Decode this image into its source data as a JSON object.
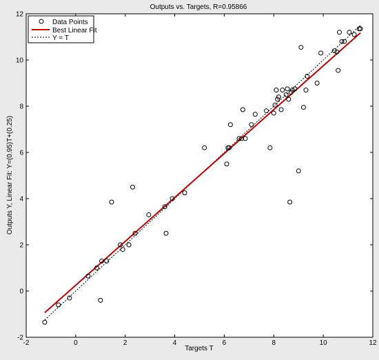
{
  "chart_data": {
    "type": "scatter",
    "title": "Outputs vs. Targets, R=0.95866",
    "xlabel": "Targets T",
    "ylabel": "Outputs Y,  Linear Fit: Y=(0.95)T+(0.25)",
    "xlim": [
      -2,
      12
    ],
    "ylim": [
      -2,
      12
    ],
    "xticks": [
      -2,
      0,
      2,
      4,
      6,
      8,
      10,
      12
    ],
    "yticks": [
      -2,
      0,
      2,
      4,
      6,
      8,
      10,
      12
    ],
    "grid": false,
    "legend_position": "top-left",
    "colors": {
      "fit_line": "#c00000",
      "identity_line": "#000000",
      "points": "#000000",
      "plot_bg": "#ffffff",
      "figure_bg": "#eaeaea"
    },
    "series": [
      {
        "name": "Data Points",
        "kind": "scatter",
        "points": [
          [
            -1.25,
            -1.35
          ],
          [
            -0.7,
            -0.6
          ],
          [
            -0.25,
            -0.3
          ],
          [
            0.5,
            0.65
          ],
          [
            0.85,
            1.0
          ],
          [
            1.0,
            -0.4
          ],
          [
            1.05,
            1.3
          ],
          [
            1.25,
            1.3
          ],
          [
            1.45,
            3.85
          ],
          [
            1.8,
            2.0
          ],
          [
            1.9,
            1.8
          ],
          [
            2.15,
            2.0
          ],
          [
            2.3,
            4.5
          ],
          [
            2.4,
            2.5
          ],
          [
            2.95,
            3.3
          ],
          [
            3.6,
            3.65
          ],
          [
            3.65,
            2.5
          ],
          [
            3.9,
            4.0
          ],
          [
            4.4,
            4.25
          ],
          [
            5.2,
            6.2
          ],
          [
            6.1,
            5.5
          ],
          [
            6.15,
            6.2
          ],
          [
            6.2,
            6.2
          ],
          [
            6.25,
            7.2
          ],
          [
            6.6,
            6.6
          ],
          [
            6.7,
            6.6
          ],
          [
            6.75,
            7.85
          ],
          [
            6.85,
            6.6
          ],
          [
            7.1,
            7.2
          ],
          [
            7.25,
            7.65
          ],
          [
            7.7,
            7.8
          ],
          [
            7.85,
            6.2
          ],
          [
            8.0,
            7.7
          ],
          [
            8.05,
            8.05
          ],
          [
            8.1,
            8.7
          ],
          [
            8.15,
            8.3
          ],
          [
            8.2,
            8.4
          ],
          [
            8.3,
            7.85
          ],
          [
            8.35,
            8.7
          ],
          [
            8.5,
            8.5
          ],
          [
            8.55,
            8.75
          ],
          [
            8.6,
            8.3
          ],
          [
            8.65,
            3.85
          ],
          [
            8.7,
            8.6
          ],
          [
            8.75,
            8.7
          ],
          [
            8.85,
            8.75
          ],
          [
            9.0,
            5.2
          ],
          [
            9.1,
            10.55
          ],
          [
            9.2,
            7.95
          ],
          [
            9.3,
            8.7
          ],
          [
            9.35,
            9.3
          ],
          [
            9.75,
            9.0
          ],
          [
            9.9,
            10.3
          ],
          [
            10.45,
            10.4
          ],
          [
            10.55,
            10.35
          ],
          [
            10.6,
            9.55
          ],
          [
            10.65,
            11.2
          ],
          [
            10.75,
            10.8
          ],
          [
            10.85,
            10.8
          ],
          [
            11.05,
            11.2
          ],
          [
            11.25,
            11.1
          ],
          [
            11.45,
            11.35
          ],
          [
            11.5,
            11.35
          ]
        ]
      },
      {
        "name": "Best Linear Fit",
        "kind": "line",
        "style": "solid",
        "points": [
          [
            -1.25,
            -0.9375
          ],
          [
            11.5,
            11.175
          ]
        ]
      },
      {
        "name": "Y = T",
        "kind": "line",
        "style": "dotted",
        "points": [
          [
            -1.25,
            -1.25
          ],
          [
            11.5,
            11.5
          ]
        ]
      }
    ]
  }
}
